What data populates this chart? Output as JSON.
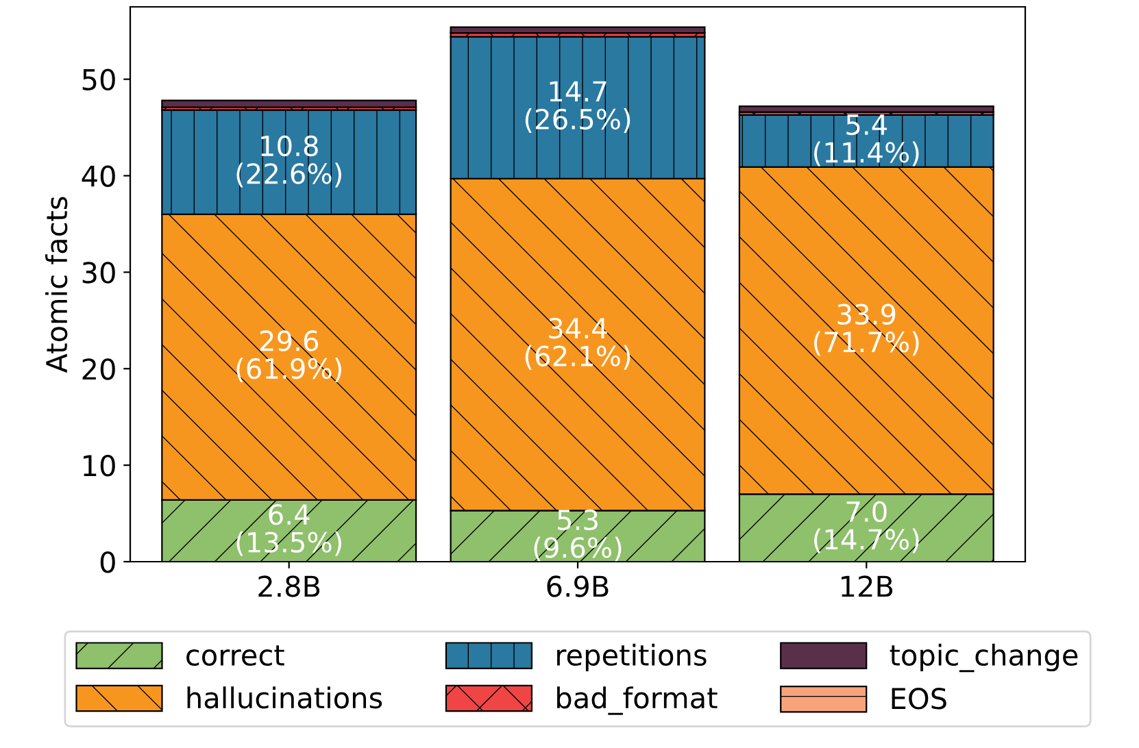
{
  "chart_data": {
    "type": "bar",
    "stacked": true,
    "ylabel": "Atomic facts",
    "categories": [
      "2.8B",
      "6.9B",
      "12B"
    ],
    "series": [
      {
        "name": "correct",
        "color": "#8fc06b",
        "values": [
          6.4,
          5.3,
          7.0
        ],
        "value_labels": [
          "6.4\n(13.5%)",
          "5.3\n(9.6%)",
          "7.0\n(14.7%)"
        ]
      },
      {
        "name": "hallucinations",
        "color": "#f7961e",
        "values": [
          29.6,
          34.4,
          33.9
        ],
        "value_labels": [
          "29.6\n(61.9%)",
          "34.4\n(62.1%)",
          "33.9\n(71.7%)"
        ]
      },
      {
        "name": "repetitions",
        "color": "#2979a1",
        "values": [
          10.8,
          14.7,
          5.4
        ],
        "value_labels": [
          "10.8\n(22.6%)",
          "14.7\n(26.5%)",
          "5.4\n(11.4%)"
        ]
      },
      {
        "name": "bad_format",
        "color": "#f04545",
        "values": [
          0.3,
          0.4,
          0.3
        ]
      },
      {
        "name": "topic_change",
        "color": "#5a2f4a",
        "values": [
          0.7,
          0.6,
          0.6
        ]
      },
      {
        "name": "EOS",
        "color": "#f7a47c",
        "values": [
          0.0,
          0.0,
          0.0
        ]
      }
    ],
    "ylim": [
      0,
      57.5
    ],
    "yticks": [
      0,
      10,
      20,
      30,
      40,
      50
    ],
    "grid": false,
    "legend": "bottom"
  }
}
